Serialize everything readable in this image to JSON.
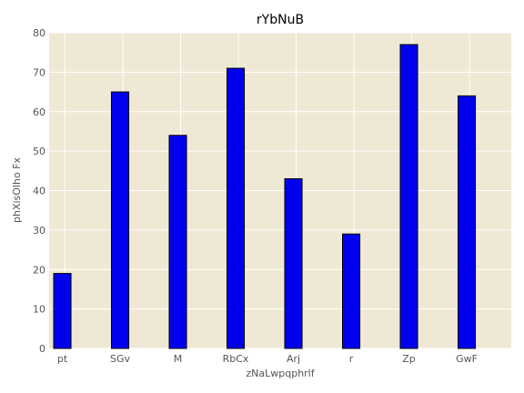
{
  "chart_data": {
    "type": "bar",
    "title": "rYbNuB",
    "xlabel": "zNaLwpqphrlf",
    "ylabel": "phXisOlho Fx",
    "categories": [
      "pt",
      "SGv",
      "M",
      "RbCx",
      "Arj",
      "r",
      "Zp",
      "GwF"
    ],
    "values": [
      19,
      65,
      54,
      71,
      43,
      29,
      77,
      64
    ],
    "ylim": [
      0,
      80
    ],
    "yticks": [
      0,
      10,
      20,
      30,
      40,
      50,
      60,
      70,
      80
    ],
    "grid": true,
    "colors": {
      "bar_fill": "#0000ee",
      "bar_edge": "#000000",
      "plot_background": "#efe8d4",
      "grid": "#ffffff"
    }
  }
}
